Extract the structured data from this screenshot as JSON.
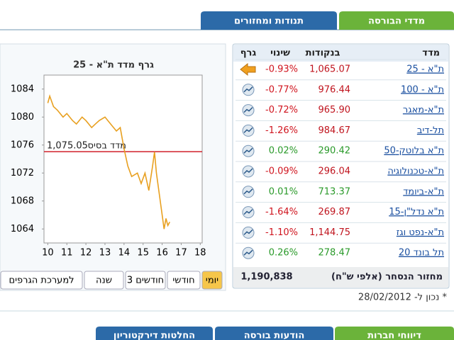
{
  "tabs_top": [
    "מדדי הבורסה",
    "תנודות ומחזורים"
  ],
  "chart": {
    "type": "line",
    "title": "גרף מדד ת\"א - 25",
    "x": [
      10.0,
      10.1,
      10.3,
      10.5,
      10.8,
      11.0,
      11.3,
      11.5,
      11.8,
      12.0,
      12.3,
      12.5,
      12.7,
      13.0,
      13.3,
      13.6,
      13.8,
      14.0,
      14.2,
      14.4,
      14.7,
      14.9,
      15.1,
      15.3,
      15.5,
      15.6,
      15.7,
      15.9,
      16.0,
      16.1,
      16.2,
      16.3,
      16.4
    ],
    "values": [
      1082,
      1083,
      1081.5,
      1081,
      1080,
      1080.5,
      1079.5,
      1079,
      1080,
      1079.5,
      1078.5,
      1079,
      1079.5,
      1080,
      1079,
      1078,
      1078.5,
      1075.5,
      1073,
      1071.5,
      1072,
      1070.5,
      1072,
      1069.5,
      1073,
      1075,
      1072,
      1068,
      1066,
      1064,
      1065.5,
      1064.5,
      1065
    ],
    "color": "#e8a020",
    "xlim": [
      9.8,
      18.1
    ],
    "ylim": [
      1062,
      1086
    ],
    "xticks": [
      10,
      11,
      12,
      13,
      14,
      15,
      16,
      17,
      18
    ],
    "yticks": [
      1064,
      1068,
      1072,
      1076,
      1080,
      1084
    ],
    "base_line": {
      "value": 1075.05,
      "label": "1,075.05",
      "name": "מדד בסיס",
      "color": "#d0202a"
    }
  },
  "range_buttons": [
    "יומי",
    "חודשי",
    "3 חודשים",
    "שנה",
    "למערכת הגרפים"
  ],
  "table": {
    "headers": [
      "מדד",
      "בנקודות",
      "שינוי",
      "גרף"
    ],
    "rows": [
      [
        "ת\"א - 25",
        "1,065.07",
        "-0.93%"
      ],
      [
        "ת\"א - 100",
        "976.44",
        "-0.77%"
      ],
      [
        "ת\"א-מאגר",
        "965.90",
        "-0.72%"
      ],
      [
        "תל-דיב",
        "984.67",
        "-1.26%"
      ],
      [
        "ת\"א בלוטק-50",
        "290.42",
        "0.02%"
      ],
      [
        "ת\"א-טכנולוגיה",
        "296.04",
        "-0.09%"
      ],
      [
        "ת\"א-ביומד",
        "713.37",
        "0.01%"
      ],
      [
        "ת\"א נדל\"ן-15",
        "269.87",
        "-1.64%"
      ],
      [
        "ת\"א-נפט וגז",
        "1,144.75",
        "-1.10%"
      ],
      [
        "תל בונד 20",
        "278.47",
        "0.26%"
      ]
    ],
    "turnover_label": "מחזור הנסחר (אלפי ש\"ח)",
    "turnover": "1,190,838"
  },
  "as_of": "* נכון ל- 28/02/2012",
  "tabs_bottom": [
    "דיווחי חברות",
    "הודעות בורסה",
    "החלטות דירקטוריון"
  ]
}
